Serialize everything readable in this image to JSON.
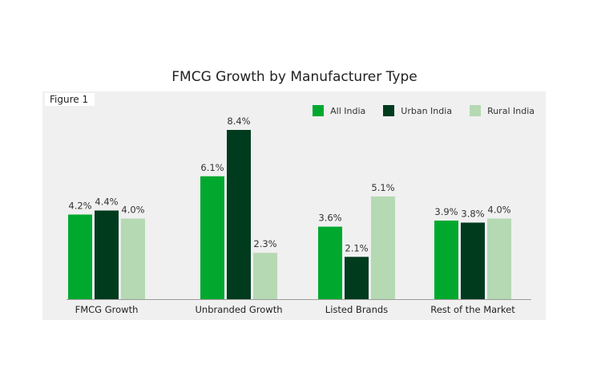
{
  "chart_data": {
    "type": "bar",
    "title": "FMCG Growth by Manufacturer Type",
    "figure_label": "Figure 1",
    "xlabel": "",
    "ylabel": "",
    "ylim": [
      0,
      8.4
    ],
    "grid": false,
    "legend_position": "top-right",
    "categories": [
      "FMCG Growth",
      "Unbranded Growth",
      "Listed Brands",
      "Rest of the Market"
    ],
    "series": [
      {
        "name": "All India",
        "color": "#00a92e",
        "values": [
          4.2,
          6.1,
          3.6,
          3.9
        ],
        "labels": [
          "4.2%",
          "6.1%",
          "3.6%",
          "3.9%"
        ]
      },
      {
        "name": "Urban India",
        "color": "#003b1e",
        "values": [
          4.4,
          8.4,
          2.1,
          3.8
        ],
        "labels": [
          "4.4%",
          "8.4%",
          "2.1%",
          "3.8%"
        ]
      },
      {
        "name": "Rural India",
        "color": "#b5d9b3",
        "values": [
          4.0,
          2.3,
          5.1,
          4.0
        ],
        "labels": [
          "4.0%",
          "2.3%",
          "5.1%",
          "4.0%"
        ]
      }
    ]
  }
}
